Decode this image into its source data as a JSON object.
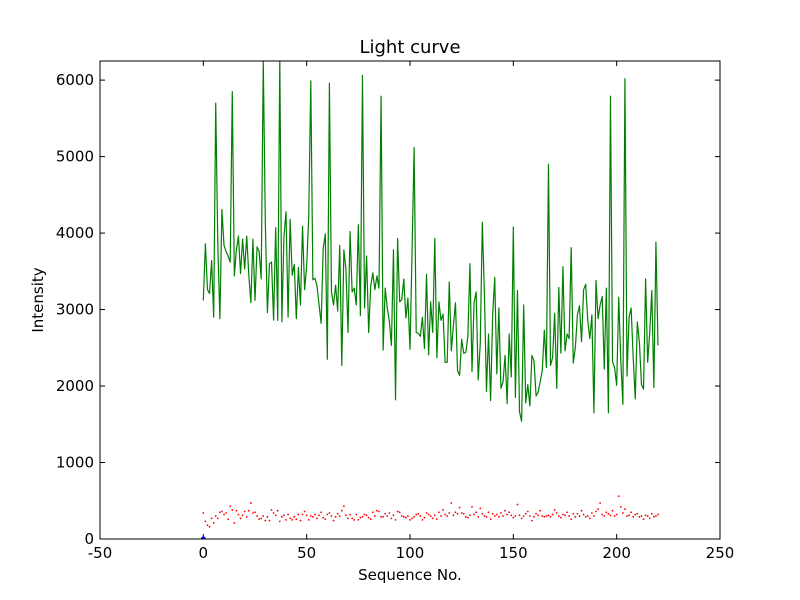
{
  "chart_data": {
    "type": "line",
    "title": "Light curve",
    "xlabel": "Sequence No.",
    "ylabel": "Intensity",
    "xlim": [
      -50,
      250
    ],
    "ylim": [
      0,
      6250
    ],
    "xticks": [
      -50,
      0,
      50,
      100,
      150,
      200,
      250
    ],
    "yticks": [
      0,
      1000,
      2000,
      3000,
      4000,
      5000,
      6000
    ],
    "grid": false,
    "legend": "none",
    "colors": {
      "green": "#008000",
      "red": "#ff0000",
      "blue": "#0000ff"
    },
    "series": [
      {
        "style": "solid-line",
        "color": "#008000",
        "x_start": 0,
        "x_step": 1,
        "values": [
          3120,
          3860,
          3260,
          3210,
          3640,
          2900,
          5700,
          3860,
          2880,
          4310,
          3840,
          3760,
          3700,
          3620,
          5850,
          3440,
          3780,
          3960,
          3470,
          3920,
          3530,
          3960,
          3450,
          3090,
          3920,
          3120,
          3820,
          3760,
          3400,
          6250,
          4130,
          2960,
          3600,
          3620,
          2860,
          4070,
          2860,
          6270,
          2840,
          3950,
          4280,
          2900,
          4180,
          3450,
          3590,
          2880,
          3550,
          3060,
          4090,
          3260,
          3570,
          4220,
          5990,
          3390,
          3410,
          3310,
          3060,
          2820,
          3800,
          3990,
          2350,
          5960,
          3230,
          3060,
          3320,
          2980,
          3840,
          2270,
          3780,
          3530,
          2700,
          4020,
          3230,
          3280,
          3060,
          4110,
          2920,
          6060,
          3020,
          3700,
          2700,
          3310,
          3480,
          3260,
          3440,
          3280,
          5790,
          2470,
          3280,
          3020,
          2850,
          2530,
          3780,
          1820,
          3930,
          3100,
          3130,
          3400,
          2890,
          3150,
          2480,
          3760,
          5120,
          2700,
          2690,
          2650,
          2900,
          2490,
          3460,
          2410,
          3100,
          2700,
          3930,
          2370,
          3100,
          2860,
          2940,
          2310,
          2310,
          3360,
          2460,
          2790,
          3090,
          2200,
          2140,
          2610,
          2430,
          2440,
          2650,
          3600,
          2190,
          3090,
          3230,
          2080,
          2560,
          4140,
          3220,
          1930,
          2680,
          1810,
          2930,
          3420,
          2160,
          3020,
          1970,
          2050,
          2400,
          1770,
          2680,
          2120,
          4080,
          1850,
          3250,
          1660,
          1540,
          3060,
          1780,
          2020,
          1740,
          2400,
          2330,
          1870,
          1920,
          2060,
          2200,
          2730,
          2240,
          4900,
          2270,
          2370,
          2950,
          1970,
          3290,
          2430,
          3560,
          2460,
          2680,
          2620,
          3810,
          2300,
          2500,
          2930,
          3050,
          2580,
          3260,
          3330,
          2860,
          2620,
          2930,
          1650,
          3380,
          2880,
          3060,
          3170,
          2220,
          3280,
          1650,
          5790,
          2320,
          2240,
          2010,
          3160,
          2330,
          1760,
          6020,
          2130,
          2900,
          3020,
          2370,
          1830,
          2840,
          2570,
          2020,
          1960,
          3400,
          2310,
          2700,
          3250,
          1980,
          3880,
          2530
        ]
      },
      {
        "style": "dotted",
        "color": "#ff0000",
        "x_start": 0,
        "x_step": 1,
        "values": [
          340,
          230,
          180,
          160,
          270,
          210,
          300,
          270,
          350,
          360,
          320,
          340,
          260,
          430,
          380,
          210,
          370,
          320,
          270,
          310,
          360,
          290,
          370,
          470,
          340,
          350,
          300,
          260,
          270,
          300,
          240,
          290,
          240,
          380,
          340,
          310,
          370,
          230,
          290,
          310,
          250,
          320,
          270,
          250,
          290,
          260,
          320,
          240,
          320,
          360,
          310,
          250,
          300,
          290,
          320,
          270,
          310,
          350,
          280,
          260,
          320,
          340,
          300,
          240,
          290,
          330,
          300,
          370,
          430,
          310,
          270,
          320,
          270,
          250,
          320,
          250,
          280,
          290,
          320,
          310,
          280,
          260,
          350,
          300,
          370,
          360,
          290,
          290,
          330,
          300,
          340,
          270,
          310,
          250,
          360,
          350,
          300,
          290,
          280,
          300,
          250,
          270,
          290,
          320,
          330,
          300,
          250,
          280,
          340,
          320,
          300,
          270,
          310,
          260,
          350,
          300,
          380,
          320,
          300,
          340,
          470,
          310,
          350,
          330,
          410,
          340,
          330,
          290,
          280,
          310,
          420,
          320,
          350,
          290,
          400,
          330,
          300,
          290,
          350,
          260,
          330,
          300,
          320,
          290,
          340,
          300,
          370,
          320,
          350,
          310,
          280,
          300,
          450,
          310,
          270,
          300,
          330,
          360,
          300,
          240,
          290,
          330,
          310,
          370,
          300,
          290,
          300,
          310,
          290,
          320,
          380,
          340,
          300,
          280,
          320,
          310,
          350,
          300,
          260,
          330,
          290,
          330,
          300,
          370,
          320,
          290,
          300,
          270,
          340,
          300,
          360,
          390,
          470,
          320,
          300,
          350,
          330,
          310,
          370,
          300,
          320,
          560,
          420,
          340,
          390,
          300,
          310,
          350,
          290,
          320,
          330,
          290,
          300,
          260,
          310,
          300,
          270,
          330,
          290,
          300,
          320
        ]
      },
      {
        "style": "point",
        "color": "#0000ff",
        "x": [
          0
        ],
        "values": [
          0
        ]
      }
    ]
  }
}
